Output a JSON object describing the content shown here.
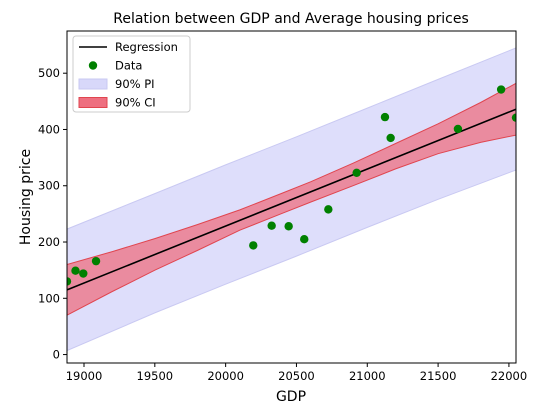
{
  "chart_data": {
    "type": "scatter",
    "title": "Relation between GDP and Average housing prices",
    "xlabel": "GDP",
    "ylabel": "Housing price",
    "xlim": [
      18880,
      22050
    ],
    "ylim": [
      -15,
      575
    ],
    "xticks": [
      19000,
      19500,
      20000,
      20500,
      21000,
      21500,
      22000
    ],
    "yticks": [
      0,
      100,
      200,
      300,
      400,
      500
    ],
    "grid": false,
    "legend_position": "top-left",
    "colors": {
      "regression": "#000000",
      "data": "#008000",
      "pi_fill": "#d8d8fa",
      "pi_edge": "#c9c9f2",
      "ci_fill": "#ee6f80",
      "ci_edge": "#e0454f"
    },
    "legend": [
      {
        "label": "Regression",
        "kind": "line"
      },
      {
        "label": "Data",
        "kind": "marker"
      },
      {
        "label": "90% PI",
        "kind": "pi"
      },
      {
        "label": "90% CI",
        "kind": "ci"
      }
    ],
    "regression": {
      "name": "Regression",
      "x": [
        18880,
        22050
      ],
      "y": [
        115,
        436
      ]
    },
    "prediction_interval": {
      "name": "90% PI",
      "x": [
        18880,
        19500,
        20000,
        20500,
        21000,
        21500,
        22050
      ],
      "lower": [
        7,
        74,
        125,
        175,
        226,
        276,
        328
      ],
      "upper": [
        223,
        286,
        337,
        387,
        438,
        489,
        545
      ]
    },
    "confidence_interval": {
      "name": "90% CI",
      "x": [
        18880,
        19200,
        19500,
        19800,
        20100,
        20400,
        20600,
        20900,
        21200,
        21500,
        21800,
        22050
      ],
      "lower": [
        70,
        112,
        150,
        185,
        221,
        251,
        271,
        300,
        330,
        357,
        377,
        390
      ],
      "upper": [
        160,
        183,
        206,
        231,
        257,
        287,
        307,
        340,
        375,
        410,
        448,
        482
      ]
    },
    "series": [
      {
        "name": "Data",
        "x": [
          18880,
          18940,
          18995,
          19085,
          20195,
          20325,
          20445,
          20555,
          20725,
          20925,
          21125,
          21165,
          21640,
          21945,
          22050
        ],
        "y": [
          130,
          149,
          144,
          166,
          194,
          229,
          228,
          205,
          258,
          323,
          422,
          385,
          401,
          471,
          421
        ]
      }
    ]
  }
}
